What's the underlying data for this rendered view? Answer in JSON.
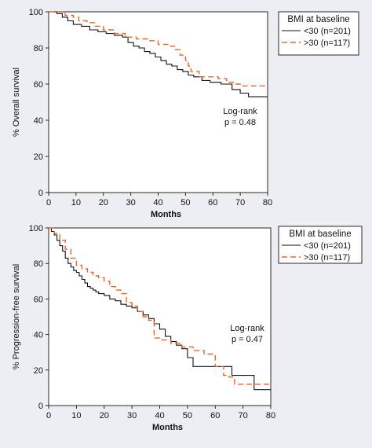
{
  "colors": {
    "background": "#eceef4",
    "bmi_lt30": "#111111",
    "bmi_gt30": "#e8642b"
  },
  "chart_data": [
    {
      "type": "line",
      "subtype": "kaplan-meier step",
      "xlabel": "Months",
      "ylabel": "% Overall survival",
      "xlim": [
        0,
        80
      ],
      "ylim": [
        0,
        100
      ],
      "xticks": [
        "0",
        "10",
        "20",
        "30",
        "40",
        "50",
        "60",
        "70",
        "80"
      ],
      "yticks": [
        "0",
        "20",
        "40",
        "60",
        "80",
        "100"
      ],
      "legend": {
        "title": "BMI at baseline",
        "position": "top-right-outside",
        "items": [
          "<30 (n=201)",
          ">30 (n=117)"
        ]
      },
      "annotation": [
        "Log-rank",
        "p = 0.48"
      ],
      "grid": false,
      "series": [
        {
          "name": "<30 (n=201)",
          "style": "solid",
          "x": [
            0,
            3,
            5,
            7,
            9,
            12,
            15,
            18,
            21,
            24,
            27,
            29,
            31,
            33,
            35,
            37,
            39,
            41,
            43,
            45,
            47,
            49,
            51,
            53,
            56,
            59,
            63,
            67,
            70,
            73,
            80
          ],
          "y": [
            100,
            99,
            97,
            95,
            93,
            92,
            90,
            89,
            88,
            87,
            86,
            83,
            81,
            80,
            78,
            77,
            75,
            73,
            71,
            70,
            68,
            67,
            65,
            64,
            62,
            61,
            60,
            57,
            55,
            53,
            53
          ]
        },
        {
          "name": ">30 (n=117)",
          "style": "dashed",
          "x": [
            0,
            6,
            9,
            11,
            14,
            17,
            20,
            24,
            28,
            32,
            36,
            40,
            44,
            46,
            48,
            50,
            51,
            52,
            55,
            62,
            65,
            66,
            68,
            70,
            80
          ],
          "y": [
            100,
            98,
            97,
            95,
            94,
            92,
            90,
            88,
            86,
            85,
            84,
            82,
            81,
            79,
            76,
            73,
            70,
            67,
            64,
            63,
            62,
            61,
            60,
            59,
            59
          ]
        }
      ]
    },
    {
      "type": "line",
      "subtype": "kaplan-meier step",
      "xlabel": "Months",
      "ylabel": "% Progression-free survival",
      "xlim": [
        0,
        80
      ],
      "ylim": [
        0,
        100
      ],
      "xticks": [
        "0",
        "10",
        "20",
        "30",
        "40",
        "50",
        "60",
        "70",
        "80"
      ],
      "yticks": [
        "0",
        "20",
        "40",
        "60",
        "80",
        "100"
      ],
      "legend": {
        "title": "BMI at baseline",
        "position": "top-right-outside",
        "items": [
          "<30 (n=201)",
          ">30 (n=117)"
        ]
      },
      "annotation": [
        "Log-rank",
        "p = 0.47"
      ],
      "grid": false,
      "series": [
        {
          "name": "<30 (n=201)",
          "style": "solid",
          "x": [
            0,
            1,
            2,
            3,
            4,
            5,
            6,
            7,
            8,
            9,
            10,
            11,
            12,
            13,
            14,
            15,
            16,
            17,
            18,
            20,
            22,
            24,
            26,
            28,
            30,
            32,
            34,
            36,
            38,
            40,
            42,
            44,
            46,
            48,
            50,
            52,
            60,
            66,
            74,
            80
          ],
          "y": [
            100,
            98,
            96,
            93,
            90,
            87,
            83,
            80,
            78,
            76,
            75,
            73,
            71,
            69,
            67,
            66,
            65,
            64,
            63,
            62,
            60,
            59,
            57,
            56,
            55,
            53,
            51,
            49,
            46,
            43,
            39,
            36,
            34,
            32,
            27,
            22,
            22,
            17,
            9,
            9
          ]
        },
        {
          "name": ">30 (n=117)",
          "style": "dashed",
          "x": [
            0,
            2,
            4,
            6,
            8,
            10,
            12,
            14,
            16,
            18,
            20,
            22,
            24,
            26,
            28,
            30,
            32,
            34,
            36,
            38,
            40,
            44,
            48,
            52,
            56,
            60,
            63,
            65,
            67,
            80
          ],
          "y": [
            100,
            97,
            93,
            88,
            83,
            79,
            77,
            75,
            73,
            72,
            70,
            67,
            65,
            63,
            58,
            56,
            53,
            50,
            48,
            38,
            37,
            35,
            33,
            31,
            29,
            22,
            17,
            16,
            12,
            12
          ]
        }
      ]
    }
  ]
}
